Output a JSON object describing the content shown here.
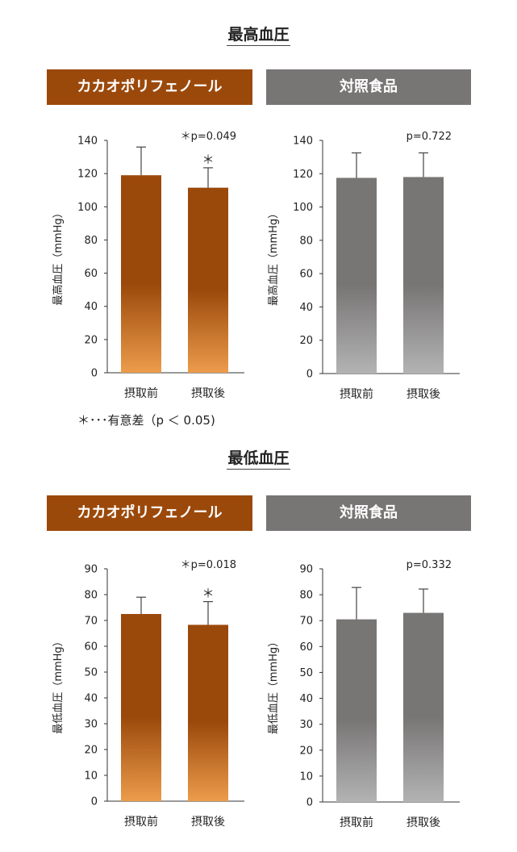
{
  "sections": [
    {
      "title": "最高血圧",
      "banners": [
        {
          "label": "カカオポリフェノール",
          "color": "#9B490B"
        },
        {
          "label": "対照食品",
          "color": "#787575"
        }
      ]
    },
    {
      "title": "最低血圧",
      "banners": [
        {
          "label": "カカオポリフェノール",
          "color": "#9B490B"
        },
        {
          "label": "対照食品",
          "color": "#787575"
        }
      ]
    }
  ],
  "significance_note": "＊･･･有意差（p ＜ 0.05)",
  "colors": {
    "cacao_top": "#9B490B",
    "cacao_bottom": "#EC9C4B",
    "control_top": "#787575",
    "control_bottom": "#B3B3B3"
  },
  "chart_data": [
    {
      "type": "bar",
      "group": "cacao",
      "categories": [
        "摂取前",
        "摂取後"
      ],
      "values": [
        119,
        111.5
      ],
      "error": [
        17,
        12
      ],
      "star_marks": [
        "",
        "＊"
      ],
      "pvalue": "＊p=0.049",
      "ylabel": "最高血圧（mmHg）",
      "ylim": [
        0,
        140
      ],
      "yticks": [
        0,
        20,
        40,
        60,
        80,
        100,
        120,
        140
      ]
    },
    {
      "type": "bar",
      "group": "control",
      "categories": [
        "摂取前",
        "摂取後"
      ],
      "values": [
        117.5,
        118
      ],
      "error": [
        15,
        14.5
      ],
      "star_marks": [
        "",
        ""
      ],
      "pvalue": "p=0.722",
      "ylabel": "最高血圧（mmHg）",
      "ylim": [
        0,
        140
      ],
      "yticks": [
        0,
        20,
        40,
        60,
        80,
        100,
        120,
        140
      ]
    },
    {
      "type": "bar",
      "group": "cacao",
      "categories": [
        "摂取前",
        "摂取後"
      ],
      "values": [
        72.5,
        68.3
      ],
      "error": [
        6.5,
        9
      ],
      "star_marks": [
        "",
        "＊"
      ],
      "pvalue": "＊p=0.018",
      "ylabel": "最低血圧（mmHg）",
      "ylim": [
        0,
        90
      ],
      "yticks": [
        0,
        10,
        20,
        30,
        40,
        50,
        60,
        70,
        80,
        90
      ]
    },
    {
      "type": "bar",
      "group": "control",
      "categories": [
        "摂取前",
        "摂取後"
      ],
      "values": [
        70.5,
        73
      ],
      "error": [
        12.3,
        9.2
      ],
      "star_marks": [
        "",
        ""
      ],
      "pvalue": "p=0.332",
      "ylabel": "最低血圧（mmHg）",
      "ylim": [
        0,
        90
      ],
      "yticks": [
        0,
        10,
        20,
        30,
        40,
        50,
        60,
        70,
        80,
        90
      ]
    }
  ]
}
